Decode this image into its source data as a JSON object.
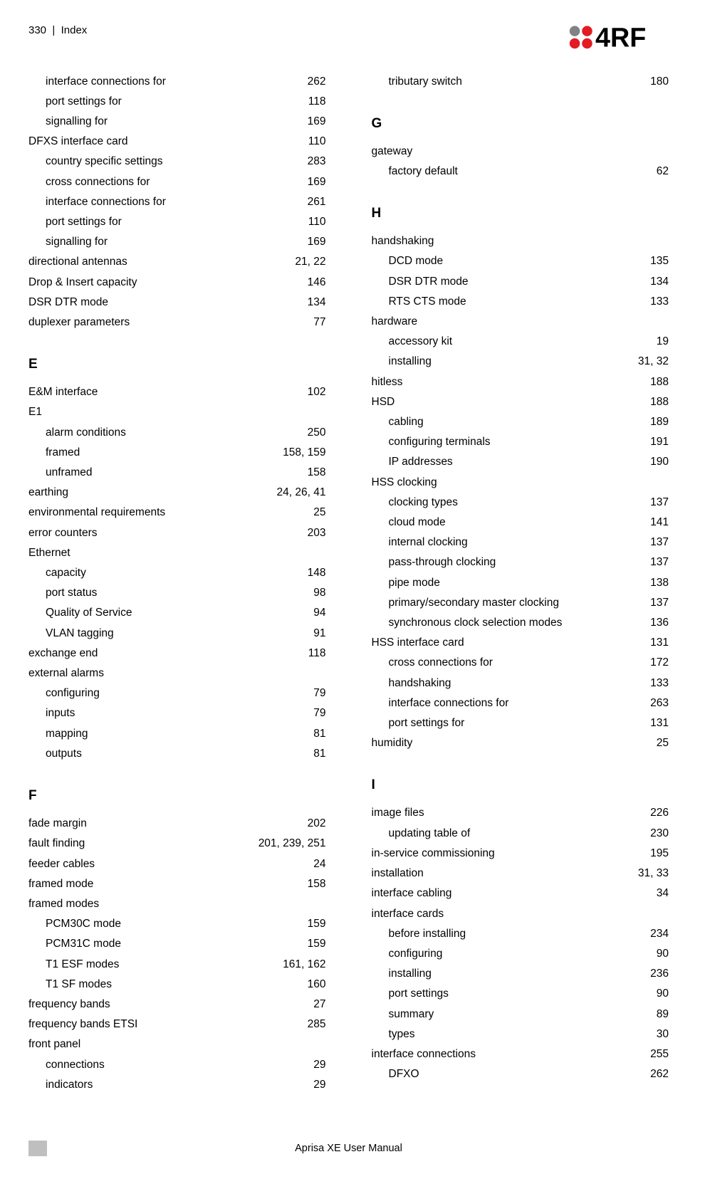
{
  "header": {
    "page_number": "330",
    "section": "Index",
    "logo_text": "4RF",
    "logo_colors": {
      "red": "#e31b23",
      "grey": "#808285",
      "text": "#000000"
    }
  },
  "footer": {
    "text": "Aprisa XE User Manual"
  },
  "left": {
    "pre": [
      {
        "indent": 1,
        "term": "interface connections for",
        "pages": "262"
      },
      {
        "indent": 1,
        "term": "port settings for",
        "pages": "118"
      },
      {
        "indent": 1,
        "term": "signalling for",
        "pages": "169"
      },
      {
        "indent": 0,
        "term": "DFXS interface card",
        "pages": "110"
      },
      {
        "indent": 1,
        "term": "country specific settings",
        "pages": "283"
      },
      {
        "indent": 1,
        "term": "cross connections for",
        "pages": "169"
      },
      {
        "indent": 1,
        "term": "interface connections for",
        "pages": "261"
      },
      {
        "indent": 1,
        "term": "port settings for",
        "pages": "110"
      },
      {
        "indent": 1,
        "term": "signalling for",
        "pages": "169"
      },
      {
        "indent": 0,
        "term": "directional antennas",
        "pages": "21, 22"
      },
      {
        "indent": 0,
        "term": "Drop & Insert capacity",
        "pages": "146"
      },
      {
        "indent": 0,
        "term": "DSR DTR mode",
        "pages": "134"
      },
      {
        "indent": 0,
        "term": "duplexer parameters",
        "pages": "77"
      }
    ],
    "sections": [
      {
        "letter": "E",
        "items": [
          {
            "indent": 0,
            "term": "E&M interface",
            "pages": "102"
          },
          {
            "indent": 0,
            "term": "E1",
            "pages": ""
          },
          {
            "indent": 1,
            "term": "alarm conditions",
            "pages": "250"
          },
          {
            "indent": 1,
            "term": "framed",
            "pages": "158, 159"
          },
          {
            "indent": 1,
            "term": "unframed",
            "pages": "158"
          },
          {
            "indent": 0,
            "term": "earthing",
            "pages": "24, 26, 41"
          },
          {
            "indent": 0,
            "term": "environmental requirements",
            "pages": "25"
          },
          {
            "indent": 0,
            "term": "error counters",
            "pages": "203"
          },
          {
            "indent": 0,
            "term": "Ethernet",
            "pages": ""
          },
          {
            "indent": 1,
            "term": "capacity",
            "pages": "148"
          },
          {
            "indent": 1,
            "term": "port status",
            "pages": "98"
          },
          {
            "indent": 1,
            "term": "Quality of Service",
            "pages": "94"
          },
          {
            "indent": 1,
            "term": "VLAN tagging",
            "pages": "91"
          },
          {
            "indent": 0,
            "term": "exchange end",
            "pages": "118"
          },
          {
            "indent": 0,
            "term": "external alarms",
            "pages": ""
          },
          {
            "indent": 1,
            "term": "configuring",
            "pages": "79"
          },
          {
            "indent": 1,
            "term": "inputs",
            "pages": "79"
          },
          {
            "indent": 1,
            "term": "mapping",
            "pages": "81"
          },
          {
            "indent": 1,
            "term": "outputs",
            "pages": "81"
          }
        ]
      },
      {
        "letter": "F",
        "items": [
          {
            "indent": 0,
            "term": "fade margin",
            "pages": "202"
          },
          {
            "indent": 0,
            "term": "fault finding",
            "pages": "201, 239, 251"
          },
          {
            "indent": 0,
            "term": "feeder cables",
            "pages": "24"
          },
          {
            "indent": 0,
            "term": "framed mode",
            "pages": "158"
          },
          {
            "indent": 0,
            "term": "framed modes",
            "pages": ""
          },
          {
            "indent": 1,
            "term": "PCM30C mode",
            "pages": "159"
          },
          {
            "indent": 1,
            "term": "PCM31C mode",
            "pages": "159"
          },
          {
            "indent": 1,
            "term": "T1 ESF modes",
            "pages": "161, 162"
          },
          {
            "indent": 1,
            "term": "T1 SF modes",
            "pages": "160"
          },
          {
            "indent": 0,
            "term": "frequency bands",
            "pages": "27"
          },
          {
            "indent": 0,
            "term": "frequency bands ETSI",
            "pages": "285"
          },
          {
            "indent": 0,
            "term": "front panel",
            "pages": ""
          },
          {
            "indent": 1,
            "term": "connections",
            "pages": "29"
          },
          {
            "indent": 1,
            "term": "indicators",
            "pages": "29"
          }
        ]
      }
    ]
  },
  "right": {
    "pre": [
      {
        "indent": 1,
        "term": "tributary switch",
        "pages": "180"
      }
    ],
    "sections": [
      {
        "letter": "G",
        "items": [
          {
            "indent": 0,
            "term": "gateway",
            "pages": ""
          },
          {
            "indent": 1,
            "term": "factory default",
            "pages": "62"
          }
        ]
      },
      {
        "letter": "H",
        "items": [
          {
            "indent": 0,
            "term": "handshaking",
            "pages": ""
          },
          {
            "indent": 1,
            "term": "DCD mode",
            "pages": "135"
          },
          {
            "indent": 1,
            "term": "DSR DTR mode",
            "pages": "134"
          },
          {
            "indent": 1,
            "term": "RTS CTS mode",
            "pages": "133"
          },
          {
            "indent": 0,
            "term": "hardware",
            "pages": ""
          },
          {
            "indent": 1,
            "term": "accessory kit",
            "pages": "19"
          },
          {
            "indent": 1,
            "term": "installing",
            "pages": "31, 32"
          },
          {
            "indent": 0,
            "term": "hitless",
            "pages": "188"
          },
          {
            "indent": 0,
            "term": "HSD",
            "pages": "188"
          },
          {
            "indent": 1,
            "term": "cabling",
            "pages": "189"
          },
          {
            "indent": 1,
            "term": "configuring terminals",
            "pages": "191"
          },
          {
            "indent": 1,
            "term": "IP addresses",
            "pages": "190"
          },
          {
            "indent": 0,
            "term": "HSS clocking",
            "pages": ""
          },
          {
            "indent": 1,
            "term": "clocking types",
            "pages": "137"
          },
          {
            "indent": 1,
            "term": "cloud mode",
            "pages": "141"
          },
          {
            "indent": 1,
            "term": "internal clocking",
            "pages": "137"
          },
          {
            "indent": 1,
            "term": "pass-through clocking",
            "pages": "137"
          },
          {
            "indent": 1,
            "term": "pipe mode",
            "pages": "138"
          },
          {
            "indent": 1,
            "term": "primary/secondary master clocking",
            "pages": "137"
          },
          {
            "indent": 1,
            "term": "synchronous clock selection modes",
            "pages": "136"
          },
          {
            "indent": 0,
            "term": "HSS interface card",
            "pages": "131"
          },
          {
            "indent": 1,
            "term": "cross connections for",
            "pages": "172"
          },
          {
            "indent": 1,
            "term": "handshaking",
            "pages": "133"
          },
          {
            "indent": 1,
            "term": "interface connections for",
            "pages": "263"
          },
          {
            "indent": 1,
            "term": "port settings for",
            "pages": "131"
          },
          {
            "indent": 0,
            "term": "humidity",
            "pages": "25"
          }
        ]
      },
      {
        "letter": "I",
        "items": [
          {
            "indent": 0,
            "term": "image files",
            "pages": "226"
          },
          {
            "indent": 1,
            "term": "updating table of",
            "pages": "230"
          },
          {
            "indent": 0,
            "term": "in-service commissioning",
            "pages": "195"
          },
          {
            "indent": 0,
            "term": "installation",
            "pages": "31, 33"
          },
          {
            "indent": 0,
            "term": "interface cabling",
            "pages": "34"
          },
          {
            "indent": 0,
            "term": "interface cards",
            "pages": ""
          },
          {
            "indent": 1,
            "term": "before installing",
            "pages": "234"
          },
          {
            "indent": 1,
            "term": "configuring",
            "pages": "90"
          },
          {
            "indent": 1,
            "term": "installing",
            "pages": "236"
          },
          {
            "indent": 1,
            "term": "port settings",
            "pages": "90"
          },
          {
            "indent": 1,
            "term": "summary",
            "pages": "89"
          },
          {
            "indent": 1,
            "term": "types",
            "pages": "30"
          },
          {
            "indent": 0,
            "term": "interface connections",
            "pages": "255"
          },
          {
            "indent": 1,
            "term": "DFXO",
            "pages": "262"
          }
        ]
      }
    ]
  }
}
